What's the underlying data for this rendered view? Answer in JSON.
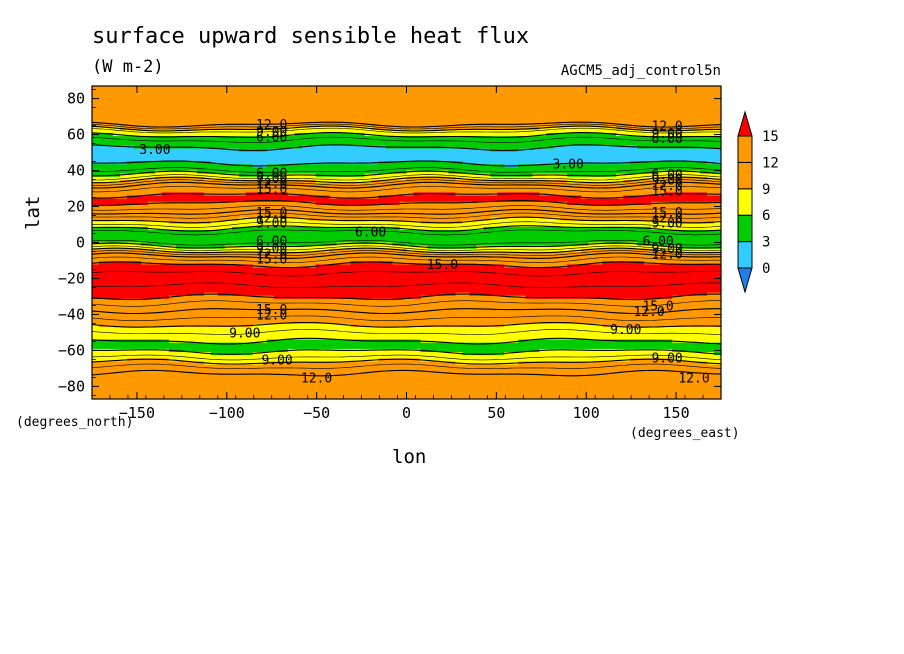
{
  "header": {
    "title": "surface upward sensible heat flux",
    "units": "(W m-2)",
    "dataset": "AGCM5_adj_control5n"
  },
  "axes": {
    "x_unit": "(degrees_east)",
    "y_unit": "(degrees_north)",
    "x_name": "lon",
    "y_name": "lat"
  },
  "colors": {
    "below_0": "#1f7fe6",
    "b0_3": "#33ccff",
    "b3_6": "#00cc00",
    "b6_9": "#ffff00",
    "b9_12": "#ff9900",
    "b12_15": "#ff9900",
    "above_15": "#ff0000"
  },
  "chart_data": {
    "type": "heatmap",
    "title": "surface upward sensible heat flux",
    "subtitle": "(W m-2)",
    "xlabel": "lon",
    "ylabel": "lat",
    "x_unit": "(degrees_east)",
    "y_unit": "(degrees_north)",
    "xlim": [
      -175,
      175
    ],
    "ylim": [
      -87,
      87
    ],
    "x_ticks": [
      -150,
      -100,
      -50,
      0,
      50,
      100,
      150
    ],
    "y_ticks": [
      -80,
      -60,
      -40,
      -20,
      0,
      20,
      40,
      60,
      80
    ],
    "colorbar": {
      "levels": [
        0,
        3,
        6,
        9,
        12,
        15
      ],
      "extend": "both"
    },
    "zonal_profile": [
      {
        "lat": 87,
        "value": 13.0
      },
      {
        "lat": 66,
        "value": 12.5
      },
      {
        "lat": 62,
        "value": 7.5
      },
      {
        "lat": 56,
        "value": 4.0
      },
      {
        "lat": 48,
        "value": 1.5
      },
      {
        "lat": 40,
        "value": 4.5
      },
      {
        "lat": 36,
        "value": 7.5
      },
      {
        "lat": 31,
        "value": 13.0
      },
      {
        "lat": 24,
        "value": 16.0
      },
      {
        "lat": 18,
        "value": 13.0
      },
      {
        "lat": 14,
        "value": 10.0
      },
      {
        "lat": 10,
        "value": 7.5
      },
      {
        "lat": 6,
        "value": 4.5
      },
      {
        "lat": 1,
        "value": 3.5
      },
      {
        "lat": -3,
        "value": 7.0
      },
      {
        "lat": -8,
        "value": 12.5
      },
      {
        "lat": -14,
        "value": 16.0
      },
      {
        "lat": -20,
        "value": 17.0
      },
      {
        "lat": -28,
        "value": 16.0
      },
      {
        "lat": -35,
        "value": 13.0
      },
      {
        "lat": -42,
        "value": 10.5
      },
      {
        "lat": -50,
        "value": 7.5
      },
      {
        "lat": -58,
        "value": 5.0
      },
      {
        "lat": -63,
        "value": 7.0
      },
      {
        "lat": -68,
        "value": 10.0
      },
      {
        "lat": -74,
        "value": 12.5
      },
      {
        "lat": -87,
        "value": 12.5
      }
    ],
    "contour_labels": [
      {
        "text": "12.0",
        "lon": -75,
        "lat": 66
      },
      {
        "text": "9.00",
        "lon": -75,
        "lat": 62
      },
      {
        "text": "6.00",
        "lon": -75,
        "lat": 59
      },
      {
        "text": "3.00",
        "lon": -140,
        "lat": 52
      },
      {
        "text": "3.00",
        "lon": 90,
        "lat": 44
      },
      {
        "text": "12.0",
        "lon": 145,
        "lat": 65
      },
      {
        "text": "9.00",
        "lon": 145,
        "lat": 61
      },
      {
        "text": "6.00",
        "lon": 145,
        "lat": 58
      },
      {
        "text": "6.00",
        "lon": -75,
        "lat": 39
      },
      {
        "text": "9.00",
        "lon": -75,
        "lat": 36
      },
      {
        "text": "12.0",
        "lon": -75,
        "lat": 33
      },
      {
        "text": "15.0",
        "lon": -75,
        "lat": 30
      },
      {
        "text": "6.00",
        "lon": 145,
        "lat": 38
      },
      {
        "text": "9.00",
        "lon": 145,
        "lat": 35
      },
      {
        "text": "12.0",
        "lon": 145,
        "lat": 32
      },
      {
        "text": "15.0",
        "lon": 145,
        "lat": 29
      },
      {
        "text": "15.0",
        "lon": -75,
        "lat": 17
      },
      {
        "text": "12.0",
        "lon": -75,
        "lat": 14
      },
      {
        "text": "9.00",
        "lon": -75,
        "lat": 11
      },
      {
        "text": "15.0",
        "lon": 145,
        "lat": 17
      },
      {
        "text": "12.0",
        "lon": 145,
        "lat": 14
      },
      {
        "text": "9.00",
        "lon": 145,
        "lat": 11
      },
      {
        "text": "6.00",
        "lon": -20,
        "lat": 6
      },
      {
        "text": "6.00",
        "lon": -75,
        "lat": 1
      },
      {
        "text": "9.00",
        "lon": -75,
        "lat": -3
      },
      {
        "text": "12.0",
        "lon": -75,
        "lat": -6
      },
      {
        "text": "15.0",
        "lon": -75,
        "lat": -9
      },
      {
        "text": "6.00",
        "lon": 140,
        "lat": 1
      },
      {
        "text": "9.00",
        "lon": 145,
        "lat": -3
      },
      {
        "text": "12.0",
        "lon": 145,
        "lat": -6
      },
      {
        "text": "15.0",
        "lon": 20,
        "lat": -12
      },
      {
        "text": "15.0",
        "lon": -75,
        "lat": -37
      },
      {
        "text": "12.0",
        "lon": -75,
        "lat": -40
      },
      {
        "text": "15.0",
        "lon": 140,
        "lat": -35
      },
      {
        "text": "12.0",
        "lon": 135,
        "lat": -38
      },
      {
        "text": "9.00",
        "lon": -90,
        "lat": -50
      },
      {
        "text": "9.00",
        "lon": 122,
        "lat": -48
      },
      {
        "text": "9.00",
        "lon": -72,
        "lat": -65
      },
      {
        "text": "9.00",
        "lon": 145,
        "lat": -64
      },
      {
        "text": "12.0",
        "lon": -50,
        "lat": -75
      },
      {
        "text": "12.0",
        "lon": 160,
        "lat": -75
      }
    ]
  }
}
